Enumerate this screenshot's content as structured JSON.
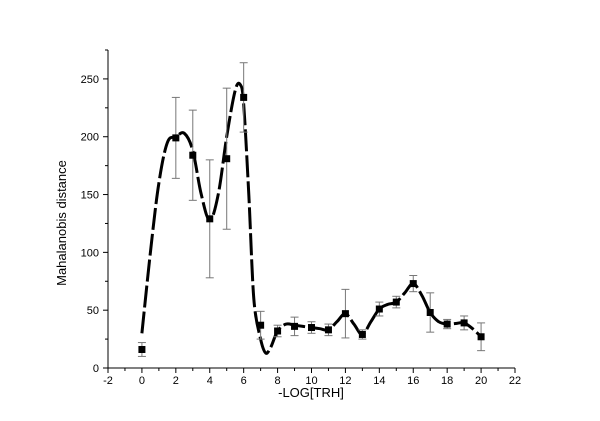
{
  "chart_data": {
    "type": "scatter",
    "xlabel": "-LOG[TRH]",
    "ylabel": "Mahalanobis distance",
    "xlim": [
      -2,
      22
    ],
    "ylim": [
      0,
      275
    ],
    "x_ticks": [
      -2,
      0,
      2,
      4,
      6,
      8,
      10,
      12,
      14,
      16,
      18,
      20,
      22
    ],
    "y_ticks": [
      0,
      50,
      100,
      150,
      200,
      250
    ],
    "grid": false,
    "legend": "none",
    "series": [
      {
        "x": [
          0,
          2,
          3,
          4,
          5,
          6,
          7,
          8,
          9,
          10,
          11,
          12,
          13,
          14,
          15,
          16,
          17,
          18,
          19,
          20
        ],
        "y": [
          16,
          199,
          184,
          129,
          181,
          234,
          37,
          32,
          36,
          35,
          33,
          47,
          29,
          51,
          57,
          73,
          48,
          38,
          39,
          27
        ],
        "error": [
          6,
          35,
          39,
          51,
          61,
          30,
          12,
          5,
          8,
          5,
          5,
          21,
          4,
          6,
          5,
          7,
          17,
          4,
          6,
          12
        ],
        "marker": "square",
        "color": "#000000"
      }
    ],
    "smooth_curve": {
      "style": "dashed",
      "color": "#000000",
      "x": [
        0,
        0.5,
        1,
        1.5,
        2,
        2.5,
        3,
        3.5,
        4,
        4.5,
        5,
        5.5,
        5.8,
        6,
        6.3,
        6.6,
        7,
        7.3,
        7.6,
        8,
        8.5,
        9,
        9.5,
        10,
        10.5,
        11,
        11.5,
        12,
        12.5,
        13,
        13.5,
        14,
        14.5,
        15,
        15.5,
        16,
        16.5,
        17,
        17.5,
        18,
        18.5,
        19,
        19.5,
        20
      ],
      "y": [
        30,
        100,
        160,
        195,
        200,
        203,
        188,
        150,
        128,
        150,
        200,
        240,
        245,
        228,
        150,
        60,
        25,
        13,
        18,
        32,
        38,
        37,
        36,
        35,
        34,
        33,
        40,
        47,
        38,
        29,
        40,
        51,
        55,
        57,
        65,
        73,
        63,
        48,
        40,
        38,
        38.5,
        39,
        34,
        27
      ]
    }
  }
}
